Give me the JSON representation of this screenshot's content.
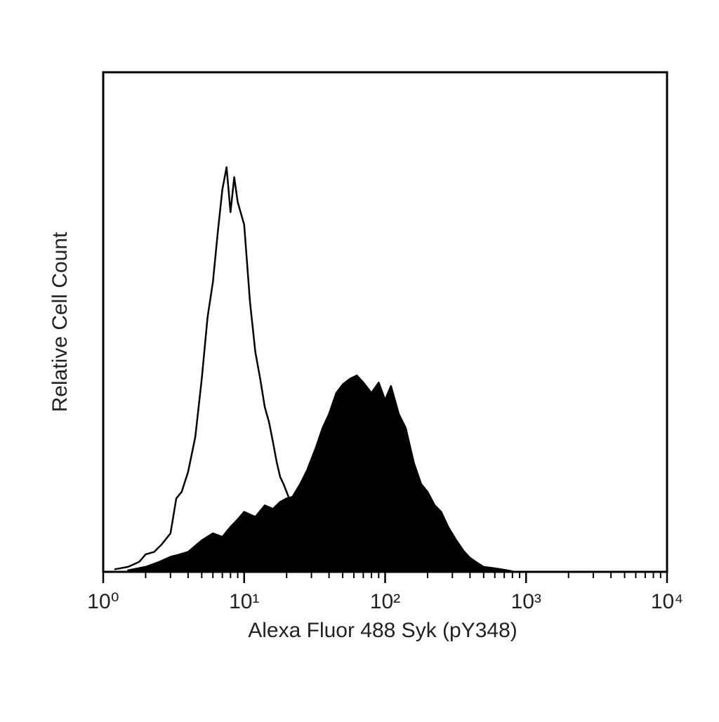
{
  "chart_data": {
    "type": "area",
    "xlabel": "Alexa Fluor 488 Syk (pY348)",
    "ylabel": "Relative Cell Count",
    "xscale": "log",
    "xlim": [
      1,
      10000
    ],
    "ylim": [
      0,
      100
    ],
    "xticks": [
      {
        "value": 1,
        "label": "10⁰"
      },
      {
        "value": 10,
        "label": "10¹"
      },
      {
        "value": 100,
        "label": "10²"
      },
      {
        "value": 1000,
        "label": "10³"
      },
      {
        "value": 10000,
        "label": "10⁴"
      }
    ],
    "xminorticks": [
      2,
      3,
      4,
      5,
      6,
      7,
      8,
      9,
      20,
      30,
      40,
      50,
      60,
      70,
      80,
      90,
      200,
      300,
      400,
      500,
      600,
      700,
      800,
      900,
      2000,
      3000,
      4000,
      5000,
      6000,
      7000,
      8000,
      9000
    ],
    "series": [
      {
        "color": "#000000",
        "filled": false,
        "x": [
          1.2,
          1.5,
          1.8,
          2,
          2.3,
          2.6,
          3,
          3.3,
          3.6,
          4,
          4.5,
          5,
          5.5,
          6,
          6.5,
          7,
          7.5,
          8,
          8.5,
          9,
          10,
          11,
          12,
          13,
          14,
          15,
          16,
          17,
          18,
          19,
          20,
          22
        ],
        "values": [
          0.5,
          1,
          2,
          3.5,
          4,
          5.5,
          7.7,
          14.7,
          16,
          20,
          27,
          38.6,
          51,
          58,
          68,
          76.5,
          81,
          72,
          79,
          74,
          69.5,
          54,
          44,
          38.6,
          33,
          30,
          26,
          22,
          19,
          17.6,
          16,
          13
        ]
      },
      {
        "color": "#000000",
        "filled": true,
        "x": [
          1.5,
          2,
          2.5,
          3,
          3.5,
          4,
          5,
          6,
          7,
          8,
          9,
          10,
          12,
          14,
          16,
          18,
          20,
          22,
          25,
          28,
          32,
          36,
          40,
          45,
          50,
          56,
          63,
          70,
          80,
          90,
          100,
          110,
          125,
          140,
          160,
          180,
          200,
          225,
          250,
          280,
          320,
          360,
          400,
          450,
          500,
          600,
          700,
          800
        ],
        "values": [
          0.3,
          1,
          2,
          3,
          3.5,
          4,
          6.3,
          7.7,
          7,
          9,
          10.5,
          12,
          11,
          13.3,
          12.6,
          14,
          14.7,
          15,
          17.6,
          20.4,
          24.6,
          28.8,
          31.6,
          35.8,
          37.5,
          38.6,
          39.3,
          37.9,
          35.8,
          37.9,
          34.4,
          37.2,
          31.6,
          28.8,
          21.8,
          17.6,
          16,
          13.3,
          12,
          9,
          6.3,
          4.2,
          2.8,
          1.8,
          1,
          0.7,
          0.4,
          0.1
        ]
      }
    ]
  }
}
